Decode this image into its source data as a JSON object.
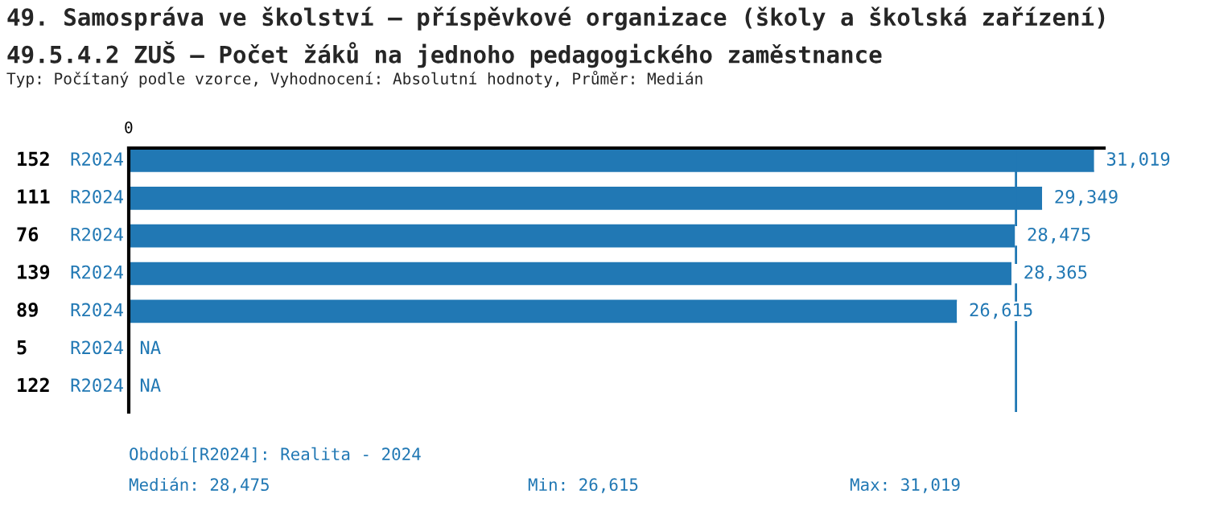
{
  "chart_data": {
    "type": "bar",
    "orientation": "horizontal",
    "title": "49. Samospráva ve školství – příspěvkové organizace (školy a školská zařízení)\n49.5.4.2 ZUŠ – Počet žáků na jednoho pedagogického zaměstnance",
    "subtitle": "Typ: Počítaný podle vzorce, Vyhodnocení: Absolutní hodnoty, Průměr: Medián",
    "categories": [
      "152",
      "111",
      "76",
      "139",
      "89",
      "5",
      "122"
    ],
    "series": [
      {
        "name": "R2024",
        "color": "#2178b4",
        "values": [
          31019,
          29349,
          28475,
          28365,
          26615,
          null,
          null
        ],
        "value_labels": [
          "31,019",
          "29,349",
          "28,475",
          "28,365",
          "26,615",
          "NA",
          "NA"
        ]
      }
    ],
    "xlim": [
      0,
      31300
    ],
    "ref_lines": [
      {
        "axis": "x",
        "value": 28475,
        "color": "#2178b4"
      }
    ],
    "annotations": [
      "0",
      "Období[R2024]: Realita - 2024",
      "Medián: 28,475",
      "Min: 26,615",
      "Max: 31,019"
    ],
    "legend": false
  }
}
